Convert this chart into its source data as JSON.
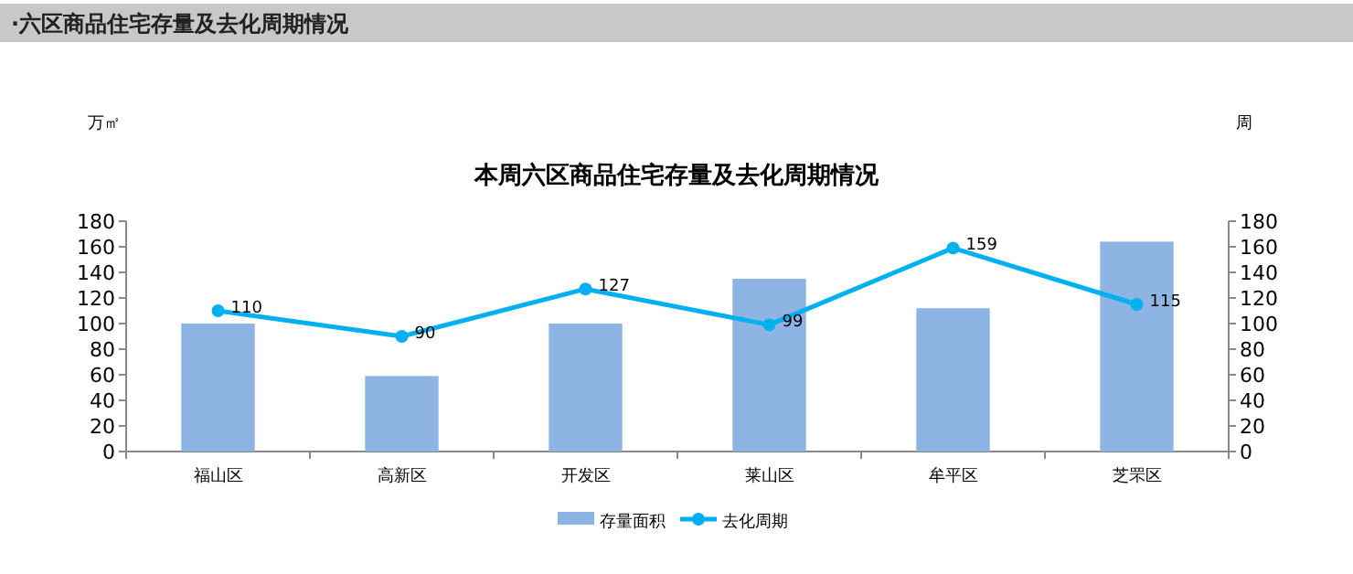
{
  "chart_data": {
    "type": "bar",
    "title": "·六区商品住宅存量及去化周期情况",
    "subtitle": "本周六区商品住宅存量及去化周期情况",
    "ylabel": "万㎡",
    "y2label": "周",
    "categories": [
      "福山区",
      "高新区",
      "开发区",
      "莱山区",
      "牟平区",
      "芝罘区"
    ],
    "series": [
      {
        "name": "存量面积",
        "color": "#8eb4e3",
        "values": [
          100,
          59,
          100,
          135,
          112,
          164
        ]
      },
      {
        "name": "去化周期",
        "type": "line",
        "axis": "y2",
        "color": "#00b0f0",
        "marker": "circle",
        "values": [
          110,
          90,
          127,
          99,
          159,
          115
        ],
        "value_labels": [
          "110",
          "90",
          "127",
          "99",
          "159",
          "115"
        ]
      }
    ],
    "ylim": [
      0,
      180
    ],
    "yticks": [
      0,
      20,
      40,
      60,
      80,
      100,
      120,
      140,
      160,
      180
    ],
    "y2lim": [
      0,
      180
    ],
    "y2ticks": [
      0,
      20,
      40,
      60,
      80,
      100,
      120,
      140,
      160,
      180
    ],
    "grid": false,
    "legend": "bottom"
  }
}
